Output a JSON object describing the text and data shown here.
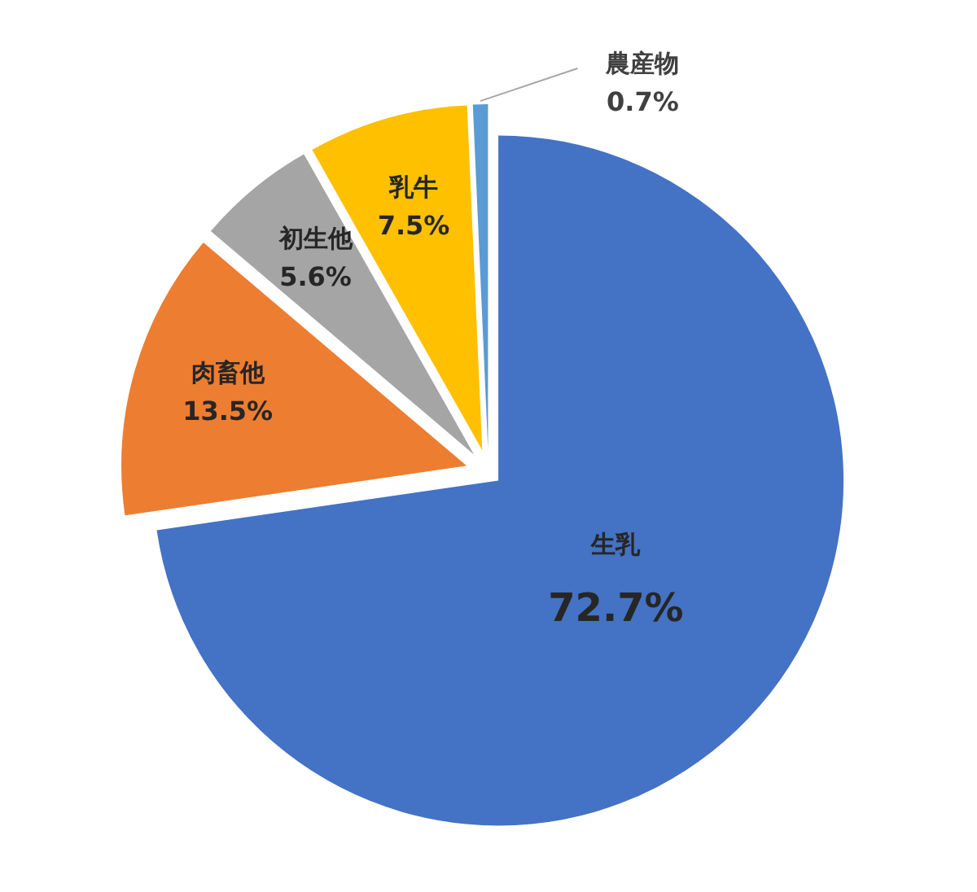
{
  "chart_data": {
    "type": "pie",
    "categories": [
      "生乳",
      "肉畜他",
      "初生他",
      "乳牛",
      "農産物"
    ],
    "values": [
      72.7,
      13.5,
      5.6,
      7.5,
      0.7
    ],
    "colors": [
      "#4472c4",
      "#ed7d31",
      "#a5a5a5",
      "#ffc000",
      "#5b9bd5"
    ],
    "value_labels": [
      "72.7%",
      "13.5%",
      "5.6%",
      "7.5%",
      "0.7%"
    ]
  }
}
